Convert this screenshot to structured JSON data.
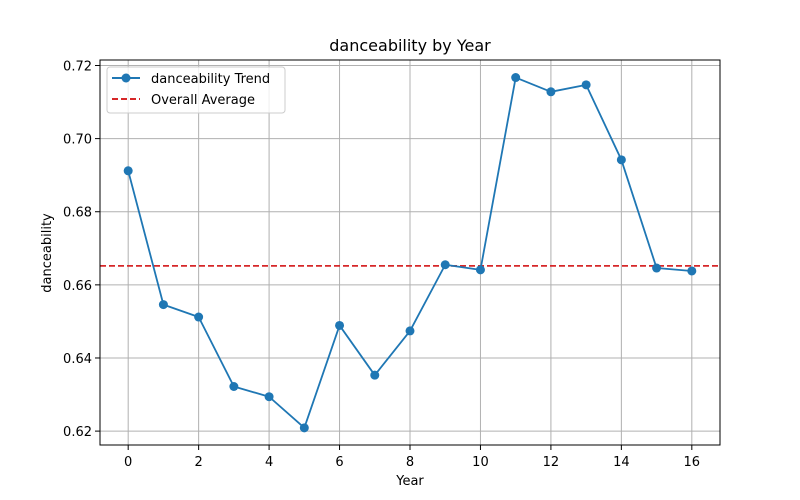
{
  "chart_data": {
    "type": "line",
    "title": "danceability by Year",
    "xlabel": "Year",
    "ylabel": "danceability",
    "xlim": [
      -0.8,
      16.8
    ],
    "ylim": [
      0.6162,
      0.7215
    ],
    "xticks": [
      0,
      2,
      4,
      6,
      8,
      10,
      12,
      14,
      16
    ],
    "xtick_labels": [
      "0",
      "2",
      "4",
      "6",
      "8",
      "10",
      "12",
      "14",
      "16"
    ],
    "yticks": [
      0.62,
      0.64,
      0.66,
      0.68,
      0.7,
      0.72
    ],
    "ytick_labels": [
      "0.62",
      "0.64",
      "0.66",
      "0.68",
      "0.70",
      "0.72"
    ],
    "grid": true,
    "legend_position": "top-left",
    "series": [
      {
        "name": "danceability Trend",
        "color": "#1f77b4",
        "marker": "circle",
        "line_style": "solid",
        "x": [
          0,
          1,
          2,
          3,
          4,
          5,
          6,
          7,
          8,
          9,
          10,
          11,
          12,
          13,
          14,
          15,
          16
        ],
        "values": [
          0.6912,
          0.6546,
          0.6512,
          0.6322,
          0.6294,
          0.6209,
          0.6489,
          0.6353,
          0.6474,
          0.6655,
          0.6641,
          0.7167,
          0.7128,
          0.7147,
          0.6942,
          0.6646,
          0.6638
        ]
      }
    ],
    "reference_lines": [
      {
        "name": "Overall Average",
        "color": "#d62728",
        "line_style": "dashed",
        "value": 0.6652
      }
    ]
  }
}
